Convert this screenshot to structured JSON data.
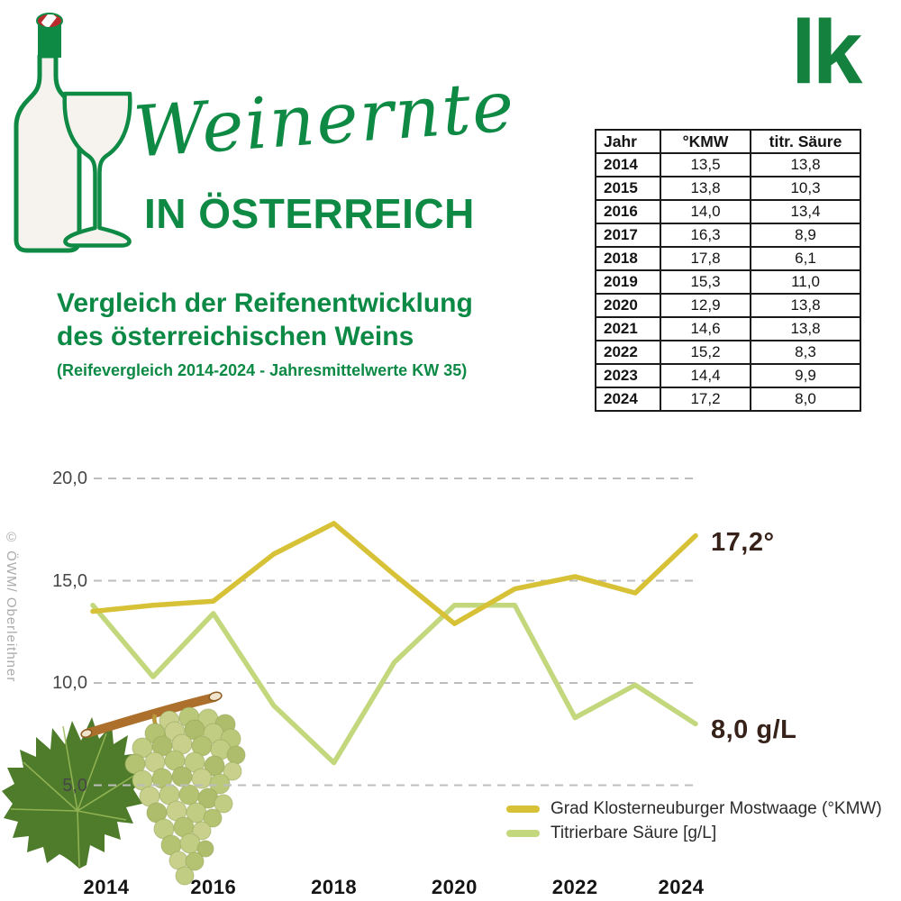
{
  "brand": {
    "logo_text": "lk"
  },
  "header": {
    "script_title": "Weinernte",
    "caps_title": "IN ÖSTERREICH"
  },
  "title": {
    "line1": "Vergleich der Reifenentwicklung",
    "line2": "des österreichischen Weins",
    "subtitle": "(Reifevergleich 2014-2024 - Jahresmittelwerte KW 35)"
  },
  "table": {
    "headers": [
      "Jahr",
      "°KMW",
      "titr. Säure"
    ],
    "rows": [
      [
        "2014",
        "13,5",
        "13,8"
      ],
      [
        "2015",
        "13,8",
        "10,3"
      ],
      [
        "2016",
        "14,0",
        "13,4"
      ],
      [
        "2017",
        "16,3",
        "8,9"
      ],
      [
        "2018",
        "17,8",
        "6,1"
      ],
      [
        "2019",
        "15,3",
        "11,0"
      ],
      [
        "2020",
        "12,9",
        "13,8"
      ],
      [
        "2021",
        "14,6",
        "13,8"
      ],
      [
        "2022",
        "15,2",
        "8,3"
      ],
      [
        "2023",
        "14,4",
        "9,9"
      ],
      [
        "2024",
        "17,2",
        "8,0"
      ]
    ]
  },
  "credit": "© ÖWM/ Oberleithner",
  "chart_data": {
    "type": "line",
    "title": "Vergleich der Reifenentwicklung des österreichischen Weins",
    "subtitle": "(Reifevergleich 2014-2024 - Jahresmittelwerte KW 35)",
    "x": [
      2014,
      2015,
      2016,
      2017,
      2018,
      2019,
      2020,
      2021,
      2022,
      2023,
      2024
    ],
    "series": [
      {
        "name": "Grad Klosterneuburger Mostwaage (°KMW)",
        "color": "#d7c136",
        "values": [
          13.5,
          13.8,
          14.0,
          16.3,
          17.8,
          15.3,
          12.9,
          14.6,
          15.2,
          14.4,
          17.2
        ],
        "end_label": "17,2°"
      },
      {
        "name": "Titrierbare Säure [g/L]",
        "color": "#c3d77d",
        "values": [
          13.8,
          10.3,
          13.4,
          8.9,
          6.1,
          11.0,
          13.8,
          13.8,
          8.3,
          9.9,
          8.0
        ],
        "end_label": "8,0 g/L"
      }
    ],
    "ylim": [
      5,
      20
    ],
    "yticks": [
      {
        "label": "20,0",
        "value": 20
      },
      {
        "label": "15,0",
        "value": 15
      },
      {
        "label": "10,0",
        "value": 10
      },
      {
        "label": "5,0",
        "value": 5
      }
    ],
    "xticks": [
      {
        "label": "2014",
        "value": 2014
      },
      {
        "label": "2016",
        "value": 2016
      },
      {
        "label": "2018",
        "value": 2018
      },
      {
        "label": "2020",
        "value": 2020
      },
      {
        "label": "2022",
        "value": 2022
      },
      {
        "label": "2024",
        "value": 2024
      }
    ],
    "grid": "horizontal-dashed",
    "legend_position": "bottom-right",
    "end_label_color": "#37221a"
  }
}
